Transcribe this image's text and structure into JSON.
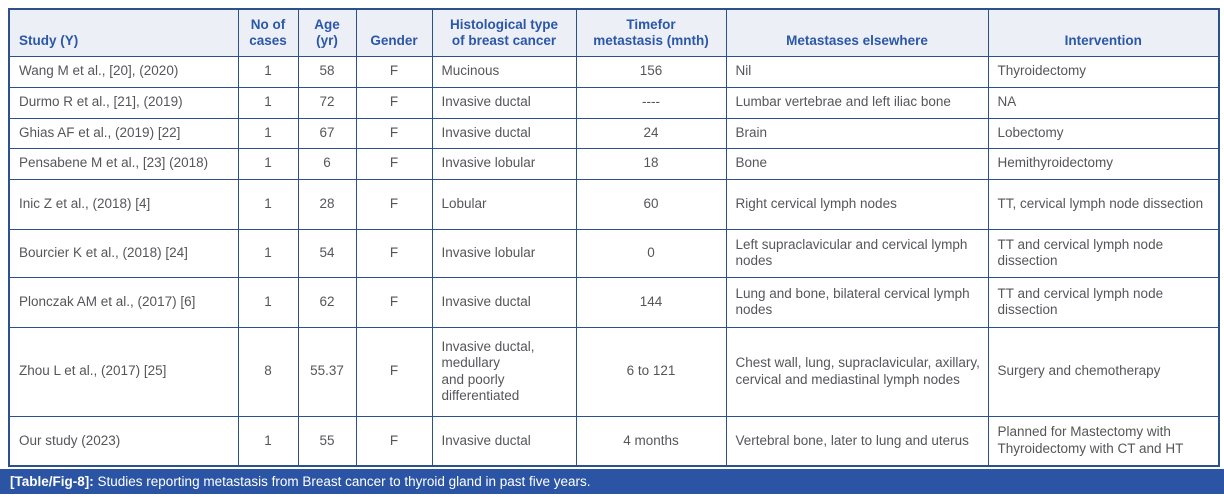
{
  "table": {
    "columns": [
      {
        "key": "study",
        "label": "Study (Y)"
      },
      {
        "key": "cases",
        "label": "No of\ncases"
      },
      {
        "key": "age",
        "label": "Age\n(yr)"
      },
      {
        "key": "gender",
        "label": "Gender"
      },
      {
        "key": "histology",
        "label": "Histological type\nof breast cancer"
      },
      {
        "key": "time",
        "label": "Timefor\nmetastasis (mnth)"
      },
      {
        "key": "metastases",
        "label": "Metastases elsewhere"
      },
      {
        "key": "intervention",
        "label": "Intervention"
      }
    ],
    "rows": [
      {
        "study": "Wang M et al., [20], (2020)",
        "cases": "1",
        "age": "58",
        "gender": "F",
        "histology": "Mucinous",
        "time": "156",
        "metastases": "Nil",
        "intervention": "Thyroidectomy"
      },
      {
        "study": "Durmo R et al., [21], (2019)",
        "cases": "1",
        "age": "72",
        "gender": "F",
        "histology": "Invasive ductal",
        "time": "----",
        "metastases": "Lumbar vertebrae and left iliac bone",
        "intervention": "NA"
      },
      {
        "study": "Ghias AF et al., (2019) [22]",
        "cases": "1",
        "age": "67",
        "gender": "F",
        "histology": "Invasive ductal",
        "time": "24",
        "metastases": "Brain",
        "intervention": "Lobectomy"
      },
      {
        "study": "Pensabene M et al., [23] (2018)",
        "cases": "1",
        "age": "6",
        "gender": "F",
        "histology": "Invasive lobular",
        "time": "18",
        "metastases": "Bone",
        "intervention": "Hemithyroidectomy"
      },
      {
        "study": "Inic Z et al., (2018) [4]",
        "cases": "1",
        "age": "28",
        "gender": "F",
        "histology": "Lobular",
        "time": "60",
        "metastases": "Right cervical lymph nodes",
        "intervention": "TT, cervical lymph node dissection"
      },
      {
        "study": "Bourcier K et al., (2018) [24]",
        "cases": "1",
        "age": "54",
        "gender": "F",
        "histology": "Invasive lobular",
        "time": "0",
        "metastases": "Left supraclavicular and cervical lymph nodes",
        "intervention": "TT and cervical lymph node dissection"
      },
      {
        "study": "Plonczak AM et al., (2017) [6]",
        "cases": "1",
        "age": "62",
        "gender": "F",
        "histology": "Invasive ductal",
        "time": "144",
        "metastases": "Lung and bone, bilateral cervical lymph nodes",
        "intervention": "TT and cervical lymph node dissection"
      },
      {
        "study": "Zhou L et al., (2017) [25]",
        "cases": "8",
        "age": "55.37",
        "gender": "F",
        "histology": "Invasive ductal,\nmedullary\nand poorly\ndifferentiated",
        "time": "6 to 121",
        "metastases": "Chest wall, lung, supraclavicular, axillary, cervical and mediastinal lymph nodes",
        "intervention": "Surgery and chemotherapy"
      },
      {
        "study": "Our study (2023)",
        "cases": "1",
        "age": "55",
        "gender": "F",
        "histology": "Invasive ductal",
        "time": "4 months",
        "metastases": "Vertebral bone, later to lung and uterus",
        "intervention": "Planned for Mastectomy with Thyroidectomy with CT and HT"
      }
    ],
    "caption": {
      "label": "[Table/Fig-8]:",
      "text": "Studies reporting metastasis from Breast cancer to thyroid gland in past five years."
    }
  },
  "colors": {
    "border": "#2c508c",
    "header_bg": "#edeff7",
    "header_text": "#2b57a8",
    "body_text": "#55565a",
    "caption_bg": "#2b55a4",
    "caption_text": "#ffffff"
  }
}
